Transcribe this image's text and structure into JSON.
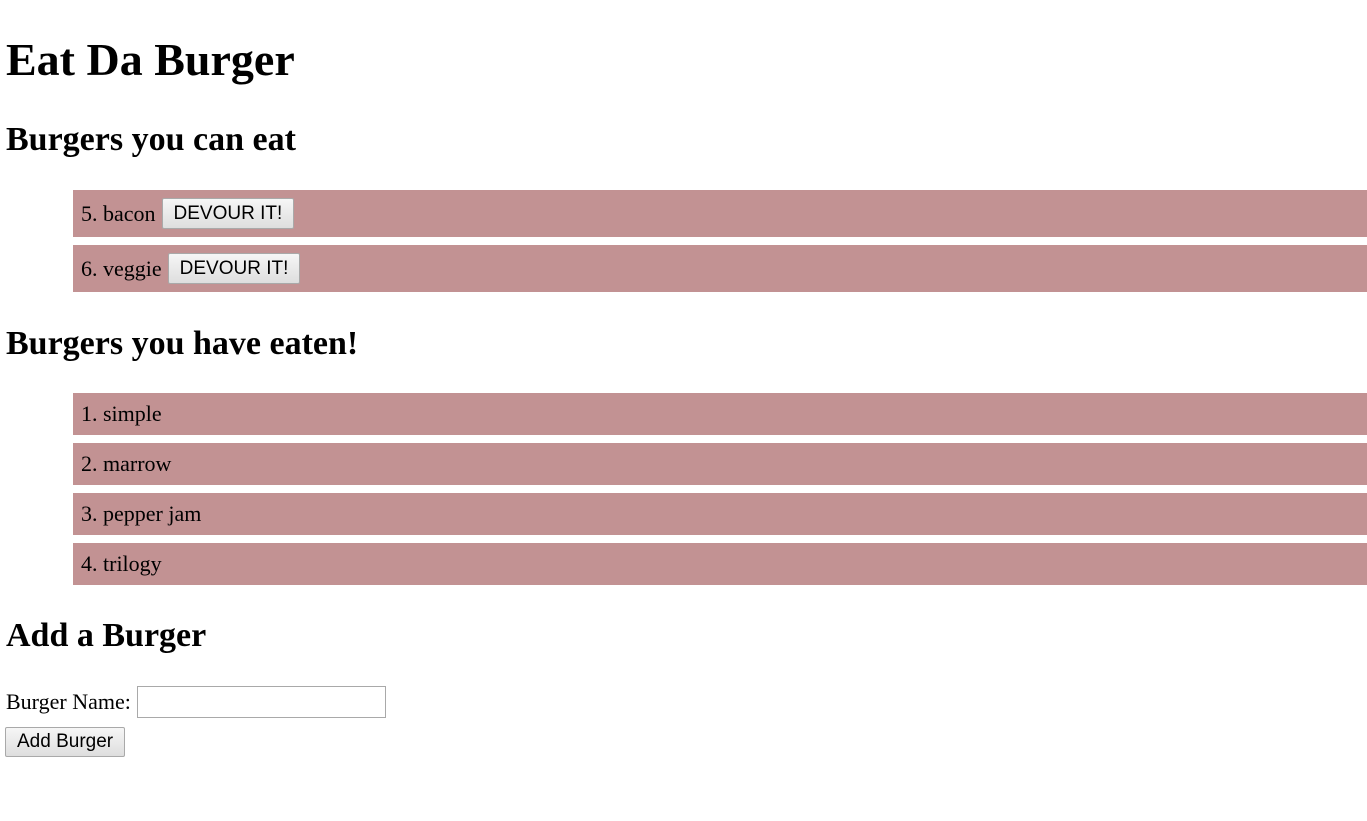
{
  "page": {
    "title": "Eat Da Burger"
  },
  "can_eat": {
    "heading": "Burgers you can eat",
    "button_label": "DEVOUR IT!",
    "items": [
      {
        "text": "5. bacon"
      },
      {
        "text": "6. veggie"
      }
    ]
  },
  "eaten": {
    "heading": "Burgers you have eaten!",
    "items": [
      {
        "text": "1. simple"
      },
      {
        "text": "2. marrow"
      },
      {
        "text": "3. pepper jam"
      },
      {
        "text": "4. trilogy"
      }
    ]
  },
  "add_form": {
    "heading": "Add a Burger",
    "field_label": "Burger Name:",
    "field_value": "",
    "submit_label": "Add Burger"
  },
  "colors": {
    "item_background": "#c29293"
  }
}
